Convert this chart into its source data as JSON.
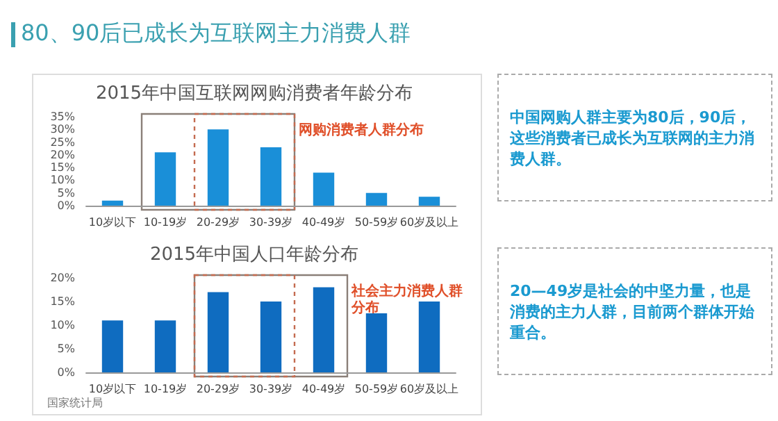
{
  "chart_data": [
    {
      "type": "other",
      "title": "80、90后已成长为互联网主力消费人群",
      "annotations": [
        "中国网购人群主要为80后，90后，这些消费者已成长为互联网的主力消费人群。",
        "20—49岁是社会的中坚力量，也是消费的主力人群，目前两个群体开始重合。"
      ]
    },
    {
      "type": "bar",
      "title": "2015年中国互联网网购消费者年龄分布",
      "categories": [
        "10岁以下",
        "10-19岁",
        "20-29岁",
        "30-39岁",
        "40-49岁",
        "50-59岁",
        "60岁及以上"
      ],
      "values": [
        2,
        21,
        30,
        23,
        13,
        5,
        3.5
      ],
      "color": "#1a8fd8",
      "ylim": [
        0,
        35
      ],
      "yticks": [
        {
          "value": 0,
          "label": "0%"
        },
        {
          "value": 5,
          "label": "5%"
        },
        {
          "value": 10,
          "label": "10%"
        },
        {
          "value": 15,
          "label": "15%"
        },
        {
          "value": 20,
          "label": "20%"
        },
        {
          "value": 25,
          "label": "25%"
        },
        {
          "value": 30,
          "label": "30%"
        },
        {
          "value": 35,
          "label": "35%"
        }
      ],
      "grid": false,
      "annotations": [
        "网购消费者人群分布"
      ]
    },
    {
      "type": "bar",
      "title": "2015年中国人口年龄分布",
      "categories": [
        "10岁以下",
        "10-19岁",
        "20-29岁",
        "30-39岁",
        "40-49岁",
        "50-59岁",
        "60岁及以上"
      ],
      "values": [
        11,
        11,
        17,
        15,
        18,
        12.5,
        15
      ],
      "color": "#0f6cc0",
      "ylim": [
        0,
        20
      ],
      "yticks": [
        {
          "value": 0,
          "label": "0%"
        },
        {
          "value": 5,
          "label": "5%"
        },
        {
          "value": 10,
          "label": "10%"
        },
        {
          "value": 15,
          "label": "15%"
        },
        {
          "value": 20,
          "label": "20%"
        }
      ],
      "grid": false,
      "annotations": [
        "社会主力消费人群分布",
        "国家统计局"
      ]
    }
  ]
}
